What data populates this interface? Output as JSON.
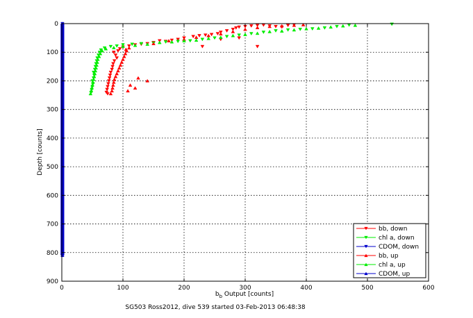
{
  "chart_data": {
    "type": "scatter",
    "title": "",
    "xlabel_main": "b",
    "xlabel_sub": "b",
    "xlabel_rest": " Output [counts]",
    "ylabel": "Depth [counts]",
    "caption": "SG503 Ross2012, dive 539 started 03-Feb-2013 06:48:38",
    "xlim": [
      0,
      600
    ],
    "ylim": [
      0,
      900
    ],
    "y_reversed": true,
    "x_ticks": [
      "0",
      "100",
      "200",
      "300",
      "400",
      "500",
      "600"
    ],
    "y_ticks": [
      "0",
      "100",
      "200",
      "300",
      "400",
      "500",
      "600",
      "700",
      "800",
      "900"
    ],
    "grid": true,
    "legend_position": "bottom-right",
    "series": [
      {
        "name": "bb, down",
        "color": "#ff0000",
        "marker": "triangle-down",
        "points": [
          [
            85,
            100
          ],
          [
            88,
            110
          ],
          [
            90,
            120
          ],
          [
            86,
            130
          ],
          [
            84,
            140
          ],
          [
            83,
            150
          ],
          [
            82,
            160
          ],
          [
            80,
            170
          ],
          [
            79,
            180
          ],
          [
            78,
            190
          ],
          [
            77,
            200
          ],
          [
            76,
            210
          ],
          [
            75,
            220
          ],
          [
            74,
            230
          ],
          [
            73,
            240
          ],
          [
            75,
            245
          ],
          [
            92,
            95
          ],
          [
            95,
            88
          ],
          [
            100,
            82
          ],
          [
            110,
            78
          ],
          [
            120,
            74
          ],
          [
            130,
            72
          ],
          [
            140,
            70
          ],
          [
            150,
            66
          ],
          [
            160,
            60
          ],
          [
            170,
            62
          ],
          [
            180,
            58
          ],
          [
            190,
            55
          ],
          [
            200,
            50
          ],
          [
            215,
            45
          ],
          [
            225,
            42
          ],
          [
            235,
            40
          ],
          [
            245,
            38
          ],
          [
            255,
            35
          ],
          [
            260,
            30
          ],
          [
            270,
            25
          ],
          [
            280,
            20
          ],
          [
            285,
            15
          ],
          [
            290,
            12
          ],
          [
            300,
            10
          ],
          [
            310,
            8
          ],
          [
            320,
            6
          ],
          [
            330,
            5
          ],
          [
            340,
            8
          ],
          [
            350,
            10
          ],
          [
            360,
            12
          ],
          [
            370,
            6
          ],
          [
            380,
            4
          ],
          [
            320,
            80
          ],
          [
            230,
            80
          ],
          [
            260,
            55
          ],
          [
            290,
            50
          ]
        ]
      },
      {
        "name": "chl a, down",
        "color": "#00ee00",
        "marker": "triangle-down",
        "points": [
          [
            48,
            240
          ],
          [
            49,
            230
          ],
          [
            50,
            220
          ],
          [
            51,
            210
          ],
          [
            50,
            200
          ],
          [
            52,
            190
          ],
          [
            53,
            180
          ],
          [
            52,
            170
          ],
          [
            54,
            160
          ],
          [
            55,
            150
          ],
          [
            56,
            140
          ],
          [
            57,
            130
          ],
          [
            58,
            120
          ],
          [
            60,
            110
          ],
          [
            62,
            100
          ],
          [
            64,
            92
          ],
          [
            70,
            85
          ],
          [
            80,
            80
          ],
          [
            90,
            78
          ],
          [
            100,
            74
          ],
          [
            115,
            72
          ],
          [
            130,
            70
          ],
          [
            150,
            68
          ],
          [
            170,
            64
          ],
          [
            190,
            62
          ],
          [
            210,
            60
          ],
          [
            230,
            55
          ],
          [
            250,
            50
          ],
          [
            270,
            45
          ],
          [
            290,
            40
          ],
          [
            310,
            35
          ],
          [
            330,
            30
          ],
          [
            350,
            25
          ],
          [
            370,
            22
          ],
          [
            390,
            20
          ],
          [
            410,
            18
          ],
          [
            430,
            15
          ],
          [
            450,
            10
          ],
          [
            470,
            5
          ],
          [
            540,
            2
          ]
        ]
      },
      {
        "name": "CDOM, down",
        "color": "#0000cc",
        "marker": "triangle-down",
        "points": [
          [
            1,
            0
          ],
          [
            1,
            100
          ],
          [
            1,
            200
          ],
          [
            1,
            300
          ],
          [
            1,
            400
          ],
          [
            1,
            500
          ],
          [
            1,
            600
          ],
          [
            1,
            700
          ],
          [
            1,
            800
          ],
          [
            1,
            810
          ]
        ]
      },
      {
        "name": "bb, up",
        "color": "#ff0000",
        "marker": "triangle-up",
        "points": [
          [
            80,
            245
          ],
          [
            82,
            235
          ],
          [
            83,
            225
          ],
          [
            84,
            215
          ],
          [
            85,
            205
          ],
          [
            86,
            195
          ],
          [
            88,
            185
          ],
          [
            90,
            175
          ],
          [
            92,
            165
          ],
          [
            94,
            155
          ],
          [
            96,
            145
          ],
          [
            98,
            135
          ],
          [
            100,
            125
          ],
          [
            102,
            115
          ],
          [
            104,
            105
          ],
          [
            106,
            95
          ],
          [
            105,
            90
          ],
          [
            110,
            85
          ],
          [
            120,
            225
          ],
          [
            108,
            235
          ],
          [
            112,
            215
          ],
          [
            140,
            200
          ],
          [
            125,
            190
          ],
          [
            150,
            70
          ],
          [
            175,
            60
          ],
          [
            200,
            55
          ],
          [
            220,
            48
          ],
          [
            240,
            42
          ],
          [
            260,
            36
          ],
          [
            280,
            28
          ],
          [
            300,
            20
          ],
          [
            320,
            14
          ],
          [
            340,
            10
          ],
          [
            360,
            8
          ],
          [
            380,
            6
          ],
          [
            395,
            4
          ]
        ]
      },
      {
        "name": "chl a, up",
        "color": "#00ee00",
        "marker": "triangle-up",
        "points": [
          [
            47,
            245
          ],
          [
            48,
            235
          ],
          [
            49,
            225
          ],
          [
            50,
            215
          ],
          [
            51,
            205
          ],
          [
            52,
            195
          ],
          [
            53,
            185
          ],
          [
            54,
            175
          ],
          [
            55,
            165
          ],
          [
            56,
            155
          ],
          [
            57,
            145
          ],
          [
            58,
            135
          ],
          [
            59,
            125
          ],
          [
            61,
            115
          ],
          [
            63,
            105
          ],
          [
            66,
            95
          ],
          [
            72,
            88
          ],
          [
            85,
            84
          ],
          [
            100,
            80
          ],
          [
            120,
            76
          ],
          [
            140,
            72
          ],
          [
            160,
            66
          ],
          [
            180,
            64
          ],
          [
            200,
            60
          ],
          [
            220,
            58
          ],
          [
            240,
            52
          ],
          [
            260,
            48
          ],
          [
            280,
            42
          ],
          [
            300,
            38
          ],
          [
            320,
            34
          ],
          [
            340,
            28
          ],
          [
            360,
            26
          ],
          [
            380,
            22
          ],
          [
            400,
            18
          ],
          [
            420,
            16
          ],
          [
            440,
            12
          ],
          [
            460,
            8
          ],
          [
            480,
            6
          ]
        ]
      },
      {
        "name": "CDOM, up",
        "color": "#0000cc",
        "marker": "triangle-up",
        "points": [
          [
            1,
            810
          ],
          [
            1,
            700
          ],
          [
            1,
            600
          ],
          [
            1,
            500
          ],
          [
            1,
            400
          ],
          [
            1,
            300
          ],
          [
            1,
            200
          ],
          [
            1,
            100
          ],
          [
            1,
            0
          ]
        ]
      }
    ]
  }
}
